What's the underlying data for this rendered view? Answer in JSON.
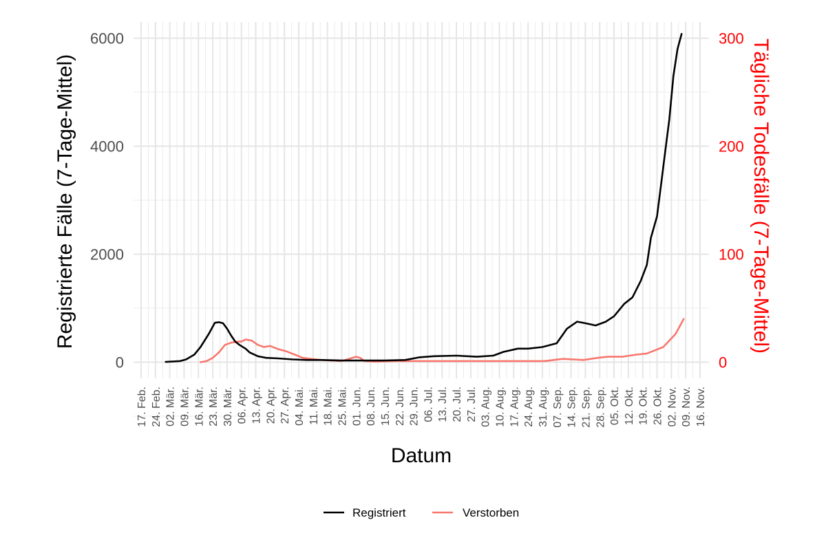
{
  "chart_data": {
    "type": "line",
    "xlabel": "Datum",
    "ylabel_left": "Registrierte Fälle (7-Tage-Mittel)",
    "ylabel_right": "Tägliche Todesfälle (7-Tage-Mittel)",
    "ylim_left": [
      -300,
      6300
    ],
    "ylim_right": [
      -15,
      315
    ],
    "yticks_left": [
      0,
      2000,
      4000,
      6000
    ],
    "yticks_right": [
      0,
      100,
      200,
      300
    ],
    "x_tick_labels": [
      "17. Feb.",
      "24. Feb.",
      "02. Mär.",
      "09. Mär.",
      "16. Mär.",
      "23. Mär.",
      "30. Mär.",
      "06. Apr.",
      "13. Apr.",
      "20. Apr.",
      "27. Apr.",
      "04. Mai.",
      "11. Mai.",
      "18. Mai.",
      "25. Mai.",
      "01. Jun.",
      "08. Jun.",
      "15. Jun.",
      "22. Jun.",
      "29. Jun.",
      "06. Jul.",
      "13. Jul.",
      "20. Jul.",
      "27. Jul.",
      "03. Aug.",
      "10. Aug.",
      "17. Aug.",
      "24. Aug.",
      "31. Aug.",
      "07. Sep.",
      "14. Sep.",
      "21. Sep.",
      "28. Sep.",
      "05. Okt.",
      "12. Okt.",
      "19. Okt.",
      "26. Okt.",
      "02. Nov.",
      "09. Nov.",
      "16. Nov."
    ],
    "grid": true,
    "legend_position": "bottom",
    "colors": {
      "registriert": "#000000",
      "verstorben": "#f8766d",
      "right_axis": "#ff0000"
    },
    "series": [
      {
        "name": "Registriert",
        "axis": "left",
        "color": "#000000",
        "x": [
          "2020-02-29",
          "2020-03-07",
          "2020-03-10",
          "2020-03-14",
          "2020-03-17",
          "2020-03-21",
          "2020-03-24",
          "2020-03-26",
          "2020-03-28",
          "2020-03-30",
          "2020-04-01",
          "2020-04-03",
          "2020-04-05",
          "2020-04-08",
          "2020-04-10",
          "2020-04-14",
          "2020-04-18",
          "2020-04-24",
          "2020-05-01",
          "2020-05-08",
          "2020-05-15",
          "2020-05-25",
          "2020-06-05",
          "2020-06-15",
          "2020-06-25",
          "2020-07-02",
          "2020-07-09",
          "2020-07-20",
          "2020-07-30",
          "2020-08-07",
          "2020-08-12",
          "2020-08-19",
          "2020-08-24",
          "2020-08-31",
          "2020-09-07",
          "2020-09-12",
          "2020-09-17",
          "2020-09-21",
          "2020-09-26",
          "2020-10-01",
          "2020-10-05",
          "2020-10-10",
          "2020-10-14",
          "2020-10-18",
          "2020-10-21",
          "2020-10-23",
          "2020-10-26",
          "2020-10-28",
          "2020-10-30",
          "2020-11-01",
          "2020-11-03",
          "2020-11-05",
          "2020-11-07"
        ],
        "values": [
          5,
          20,
          50,
          140,
          280,
          520,
          730,
          740,
          720,
          620,
          490,
          380,
          320,
          250,
          180,
          110,
          80,
          70,
          50,
          40,
          40,
          30,
          30,
          30,
          40,
          90,
          110,
          120,
          100,
          120,
          190,
          250,
          250,
          280,
          350,
          620,
          750,
          720,
          680,
          750,
          850,
          1080,
          1200,
          1500,
          1800,
          2300,
          2700,
          3300,
          3900,
          4500,
          5300,
          5800,
          6080
        ]
      },
      {
        "name": "Verstorben",
        "axis": "right",
        "color": "#f8766d",
        "x": [
          "2020-03-17",
          "2020-03-20",
          "2020-03-23",
          "2020-03-26",
          "2020-03-29",
          "2020-04-01",
          "2020-04-04",
          "2020-04-06",
          "2020-04-08",
          "2020-04-11",
          "2020-04-14",
          "2020-04-17",
          "2020-04-20",
          "2020-04-24",
          "2020-04-28",
          "2020-05-02",
          "2020-05-06",
          "2020-05-10",
          "2020-05-15",
          "2020-05-25",
          "2020-06-01",
          "2020-06-03",
          "2020-06-05",
          "2020-06-10",
          "2020-06-20",
          "2020-07-01",
          "2020-07-15",
          "2020-08-01",
          "2020-08-15",
          "2020-09-01",
          "2020-09-10",
          "2020-09-20",
          "2020-09-27",
          "2020-10-02",
          "2020-10-09",
          "2020-10-16",
          "2020-10-21",
          "2020-10-25",
          "2020-10-29",
          "2020-11-01",
          "2020-11-04",
          "2020-11-06",
          "2020-11-08"
        ],
        "values": [
          0,
          1,
          4,
          9,
          16,
          18,
          19,
          19,
          21,
          20,
          16,
          14,
          15,
          12,
          10,
          7,
          4,
          3,
          2,
          1,
          5,
          4,
          1,
          0.5,
          1,
          1,
          1,
          1,
          1,
          1,
          3,
          2,
          4,
          5,
          5,
          7,
          8,
          11,
          14,
          20,
          26,
          33,
          40
        ]
      }
    ]
  },
  "legend": {
    "items": [
      {
        "label": "Registriert",
        "color": "#000000"
      },
      {
        "label": "Verstorben",
        "color": "#f8766d"
      }
    ]
  }
}
